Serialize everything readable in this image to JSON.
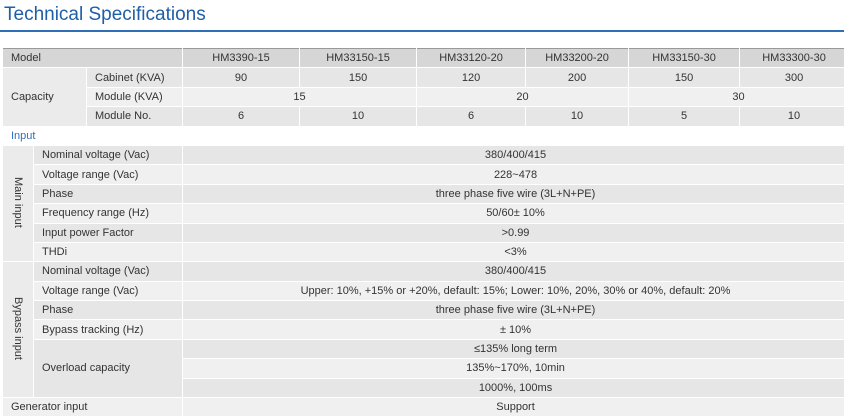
{
  "title": "Technical Specifications",
  "model_header": "Model",
  "models": [
    "HM3390-15",
    "HM33150-15",
    "HM33120-20",
    "HM33200-20",
    "HM33150-30",
    "HM33300-30"
  ],
  "capacity": {
    "label": "Capacity",
    "rows": [
      {
        "label": "Cabinet (KVA)",
        "values": [
          90,
          150,
          120,
          200,
          150,
          300
        ]
      },
      {
        "label": "Module (KVA)",
        "values": [
          15,
          20,
          30
        ]
      },
      {
        "label": "Module No.",
        "values": [
          6,
          10,
          6,
          10,
          5,
          10
        ]
      }
    ]
  },
  "input_label": "Input",
  "groups": [
    {
      "label": "Main input",
      "rows": [
        {
          "label": "Nominal  voltage (Vac)",
          "values": [
            "380/400/415"
          ]
        },
        {
          "label": "Voltage range (Vac)",
          "values": [
            "228~478"
          ]
        },
        {
          "label": "Phase",
          "values": [
            "three phase five wire (3L+N+PE)"
          ]
        },
        {
          "label": "Frequency range (Hz)",
          "values": [
            "50/60± 10%"
          ]
        },
        {
          "label": "Input power Factor",
          "values": [
            ">0.99"
          ]
        },
        {
          "label": "THDi",
          "values": [
            "<3%"
          ]
        }
      ]
    },
    {
      "label": "Bypass input",
      "rows": [
        {
          "label": "Nominal voltage (Vac)",
          "values": [
            "380/400/415"
          ]
        },
        {
          "label": "Voltage range (Vac)",
          "values": [
            "Upper: 10%, +15% or +20%, default: 15%; Lower: 10%, 20%, 30% or 40%, default: 20%"
          ]
        },
        {
          "label": "Phase",
          "values": [
            "three phase five wire (3L+N+PE)"
          ]
        },
        {
          "label": "Bypass tracking (Hz)",
          "values": [
            "± 10%"
          ]
        },
        {
          "label": "Overload capacity",
          "values": [
            "≤135% long term",
            "135%~170%, 10min",
            "1000%, 100ms"
          ]
        }
      ]
    }
  ],
  "generator": {
    "label": "Generator input",
    "value": "Support"
  }
}
